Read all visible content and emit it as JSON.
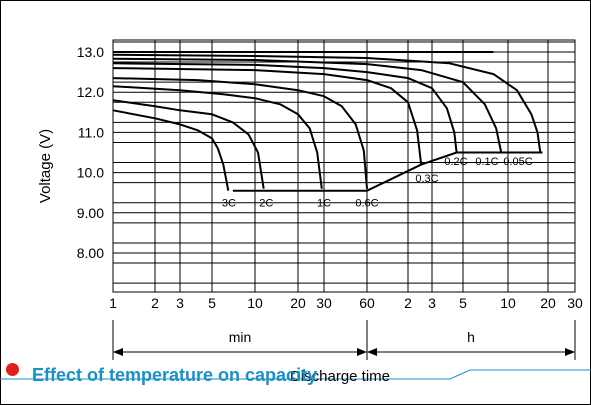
{
  "section_title": "Effect of temperature on capacity",
  "chart_data": {
    "type": "line",
    "title": "",
    "xlabel": "Discharge time",
    "ylabel": "Voltage (V)",
    "ylim": [
      7.0,
      13.5
    ],
    "x_scale": "log",
    "x_unit_groups": [
      {
        "label": "min",
        "from": "1 min",
        "to": "60 min"
      },
      {
        "label": "h",
        "from": "1 h",
        "to": "30 h"
      }
    ],
    "x_tick_labels": [
      "1",
      "2",
      "3",
      "5",
      "10",
      "20",
      "30",
      "60",
      "2",
      "3",
      "5",
      "10",
      "20",
      "30"
    ],
    "y_tick_labels": [
      "13.0",
      "12.0",
      "11.0",
      "10.0",
      "9.00",
      "8.00"
    ],
    "y_ticks": [
      13.0,
      12.0,
      11.0,
      10.0,
      9.0,
      8.0
    ],
    "end_voltage": {
      "label_positions": "bottom of curves",
      "points": [
        {
          "rate": "3C",
          "x_min": 7,
          "y": 9.55
        },
        {
          "rate": "2C",
          "x_min": 12,
          "y": 9.55
        },
        {
          "rate": "1C",
          "x_min": 30,
          "y": 9.55
        },
        {
          "rate": "0.6C",
          "x_min": 60,
          "y": 9.55
        },
        {
          "rate": "0.3C",
          "x_min": 150,
          "y": 10.2
        },
        {
          "rate": "0.2C",
          "x_min": 270,
          "y": 10.5
        },
        {
          "rate": "0.1C",
          "x_min": 540,
          "y": 10.5
        },
        {
          "rate": "0.05C",
          "x_min": 1050,
          "y": 10.5
        }
      ]
    },
    "series": [
      {
        "name": "3C",
        "x_min": [
          1,
          2,
          3,
          4,
          5,
          5.5,
          6,
          6.5
        ],
        "y": [
          11.55,
          11.35,
          11.2,
          11.05,
          10.85,
          10.6,
          10.2,
          9.55
        ]
      },
      {
        "name": "2C",
        "x_min": [
          1,
          2,
          3,
          5,
          7,
          9,
          10.5,
          11.5
        ],
        "y": [
          11.8,
          11.65,
          11.55,
          11.45,
          11.25,
          10.95,
          10.5,
          9.6
        ]
      },
      {
        "name": "1C",
        "x_min": [
          1,
          3,
          6,
          10,
          15,
          20,
          24,
          27,
          29
        ],
        "y": [
          12.15,
          12.05,
          11.95,
          11.85,
          11.7,
          11.45,
          11.1,
          10.5,
          9.6
        ]
      },
      {
        "name": "0.6C",
        "x_min": [
          1,
          4,
          10,
          20,
          30,
          40,
          50,
          57,
          60
        ],
        "y": [
          12.35,
          12.3,
          12.2,
          12.05,
          11.9,
          11.65,
          11.2,
          10.55,
          9.6
        ]
      },
      {
        "name": "0.3C",
        "x_min": [
          1,
          10,
          30,
          60,
          90,
          120,
          140,
          150
        ],
        "y": [
          12.6,
          12.55,
          12.45,
          12.3,
          12.1,
          11.75,
          11.05,
          10.2
        ]
      },
      {
        "name": "0.2C",
        "x_min": [
          1,
          10,
          30,
          60,
          120,
          180,
          230,
          260,
          270
        ],
        "y": [
          12.72,
          12.68,
          12.6,
          12.5,
          12.35,
          12.1,
          11.6,
          11.0,
          10.5
        ]
      },
      {
        "name": "0.1C",
        "x_min": [
          1,
          10,
          60,
          150,
          300,
          420,
          500,
          540
        ],
        "y": [
          12.83,
          12.8,
          12.7,
          12.55,
          12.25,
          11.7,
          11.1,
          10.5
        ]
      },
      {
        "name": "0.05C",
        "x_min": [
          1,
          10,
          60,
          240,
          480,
          700,
          900,
          1000,
          1050
        ],
        "y": [
          12.93,
          12.9,
          12.85,
          12.72,
          12.45,
          12.05,
          11.45,
          11.0,
          10.5
        ]
      },
      {
        "name": "",
        "x_min": [
          1,
          480
        ],
        "y": [
          13.0,
          13.0
        ]
      }
    ],
    "grid": true,
    "legend": "none"
  }
}
